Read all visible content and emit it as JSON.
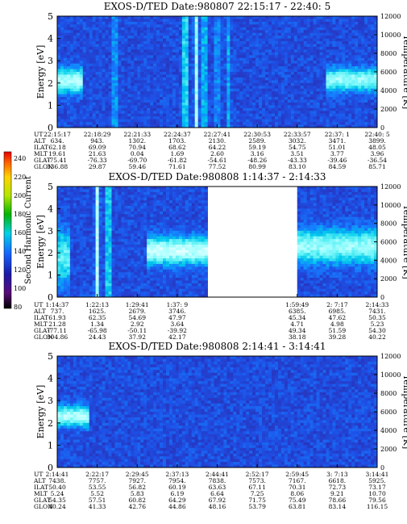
{
  "colorbar": {
    "label": "Second Harmonic Current",
    "ticks": [
      "240",
      "220",
      "200",
      "180",
      "160",
      "140",
      "120",
      "100",
      "80"
    ]
  },
  "row_labels": [
    "UT",
    "ALT",
    "ILAT",
    "MLT",
    "GLAT",
    "GLON"
  ],
  "chart_data": [
    {
      "type": "heatmap",
      "title": "EXOS-D/TED  Date:980807  22:15:17 - 22:40: 5",
      "ylabel": "Energy [eV]",
      "y2label": "Temperature [K]",
      "ylim": [
        0,
        5
      ],
      "y2lim": [
        0,
        12000
      ],
      "yticks": [
        "0",
        "1",
        "2",
        "3",
        "4",
        "5"
      ],
      "y2ticks": [
        "0",
        "2000",
        "4000",
        "6000",
        "8000",
        "10000",
        "12000"
      ],
      "columns": [
        [
          "22:15:17",
          "634.",
          "62.18",
          "19.61",
          "-75.41",
          "336.88"
        ],
        [
          "22:18:29",
          "943.",
          "69.09",
          "21.63",
          "-76.33",
          "29.87"
        ],
        [
          "22:21:33",
          "1302.",
          "70.94",
          "0.04",
          "-69.70",
          "59.46"
        ],
        [
          "22:24:37",
          "1703.",
          "68.62",
          "1.69",
          "-61.82",
          "71.61"
        ],
        [
          "22:27:41",
          "2130.",
          "64.22",
          "2.60",
          "-54.61",
          "77.52"
        ],
        [
          "22:30:53",
          "2589.",
          "59.19",
          "3.16",
          "-48.26",
          "80.99"
        ],
        [
          "22:33:57",
          "3032.",
          "54.75",
          "3.51",
          "-43.33",
          "83.10"
        ],
        [
          "22:37: 1",
          "3471.",
          "51.01",
          "3.77",
          "-39.46",
          "84.59"
        ],
        [
          "22:40: 5",
          "3899.",
          "48.05",
          "3.96",
          "-36.54",
          "85.71"
        ]
      ],
      "features": {
        "blobs": [
          {
            "t0": 0.0,
            "t1": 0.075,
            "e": 2.1,
            "de": 0.55,
            "v": 0.55
          },
          {
            "t0": 0.84,
            "t1": 1.0,
            "e": 2.15,
            "de": 0.5,
            "v": 0.5
          }
        ],
        "vbars": [
          {
            "t": 0.18,
            "v": 0.3
          },
          {
            "t": 0.4,
            "v": 0.55
          },
          {
            "t": 0.435,
            "v": 0.5
          },
          {
            "t": 0.46,
            "v": 0.4
          },
          {
            "t": 0.5,
            "v": 0.25
          },
          {
            "t": 0.535,
            "v": 0.2
          }
        ],
        "gaps": []
      }
    },
    {
      "type": "heatmap",
      "title": "EXOS-D/TED   Date:980808   1:14:37 - 2:14:33",
      "ylabel": "Energy [eV]",
      "y2label": "Temperature [K]",
      "ylim": [
        0,
        5
      ],
      "y2lim": [
        0,
        12000
      ],
      "yticks": [
        "0",
        "1",
        "2",
        "3",
        "4",
        "5"
      ],
      "y2ticks": [
        "0",
        "2000",
        "4000",
        "6000",
        "8000",
        "10000",
        "12000"
      ],
      "columns": [
        [
          "1:14:37",
          "737.",
          "61.93",
          "21.28",
          "-77.11",
          "304.86"
        ],
        [
          "1:22:13",
          "1625.",
          "62.35",
          "1.34",
          "-65.98",
          "24.43"
        ],
        [
          "1:29:41",
          "2679.",
          "54.69",
          "2.92",
          "-50.11",
          "37.92"
        ],
        [
          "1:37: 9",
          "3746.",
          "47.97",
          "3.64",
          "-39.92",
          "42.17"
        ],
        [
          "",
          "",
          "",
          "",
          "",
          ""
        ],
        [
          "",
          "",
          "",
          "",
          "",
          ""
        ],
        [
          "1:59:49",
          "6385.",
          "45.34",
          "4.71",
          "49.34",
          "38.18"
        ],
        [
          "2: 7:17",
          "6985.",
          "47.62",
          "4.98",
          "51.59",
          "39.28"
        ],
        [
          "2:14:33",
          "7431.",
          "50.35",
          "5.23",
          "54.30",
          "40.22"
        ]
      ],
      "features": {
        "blobs": [
          {
            "t0": 0.0,
            "t1": 0.035,
            "e": 1.8,
            "de": 1.2,
            "v": 0.4
          },
          {
            "t0": 0.28,
            "t1": 0.47,
            "e": 2.1,
            "de": 0.6,
            "v": 0.6
          },
          {
            "t0": 0.755,
            "t1": 0.995,
            "e": 2.3,
            "de": 0.75,
            "v": 0.5
          }
        ],
        "vbars": [
          {
            "t": 0.125,
            "v": 0.55
          },
          {
            "t": 0.16,
            "v": 0.5
          }
        ],
        "gaps": [
          {
            "t0": 0.47,
            "t1": 0.745
          }
        ]
      }
    },
    {
      "type": "heatmap",
      "title": "EXOS-D/TED   Date:980808   2:14:41 - 3:14:41",
      "ylabel": "Energy [eV]",
      "y2label": "Temperature [K]",
      "ylim": [
        0,
        5
      ],
      "y2lim": [
        0,
        12000
      ],
      "yticks": [
        "0",
        "1",
        "2",
        "3",
        "4",
        "5"
      ],
      "y2ticks": [
        "0",
        "2000",
        "4000",
        "6000",
        "8000",
        "10000",
        "12000"
      ],
      "columns": [
        [
          "2:14:41",
          "7438.",
          "50.40",
          "5.24",
          "54.35",
          "40.24"
        ],
        [
          "2:22:17",
          "7757.",
          "53.55",
          "5.52",
          "57.51",
          "41.33"
        ],
        [
          "2:29:45",
          "7927.",
          "56.82",
          "5.83",
          "60.82",
          "42.76"
        ],
        [
          "2:37:13",
          "7954.",
          "60.19",
          "6.19",
          "64.29",
          "44.86"
        ],
        [
          "2:44:41",
          "7838.",
          "63.63",
          "6.64",
          "67.92",
          "48.16"
        ],
        [
          "2:52:17",
          "7573.",
          "67.11",
          "7.25",
          "71.75",
          "53.79"
        ],
        [
          "2:59:45",
          "7167.",
          "70.31",
          "8.06",
          "75.49",
          "63.81"
        ],
        [
          "3: 7:13",
          "6618.",
          "72.73",
          "9.21",
          "78.66",
          "83.14"
        ],
        [
          "3:14:41",
          "5925.",
          "73.17",
          "10.70",
          "79.56",
          "116.15"
        ]
      ],
      "features": {
        "blobs": [
          {
            "t0": 0.0,
            "t1": 0.1,
            "e": 2.3,
            "de": 0.45,
            "v": 0.55
          }
        ],
        "vbars": [],
        "gaps": []
      }
    }
  ]
}
